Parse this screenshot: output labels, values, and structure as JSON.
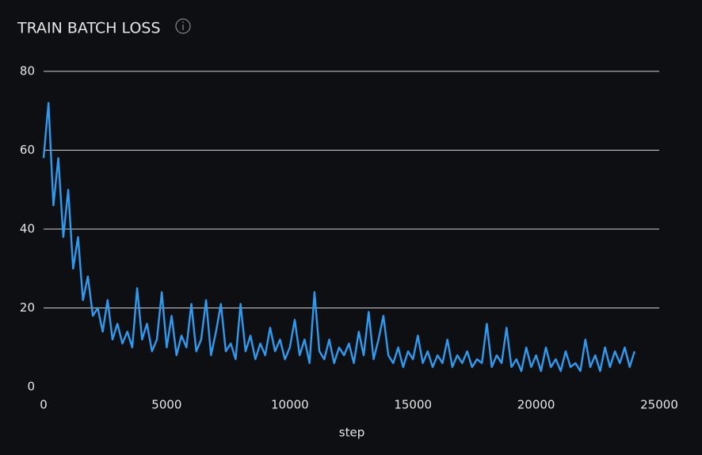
{
  "chart_data": {
    "type": "line",
    "title": "TRAIN BATCH LOSS",
    "xlabel": "step",
    "x": [
      0,
      200,
      400,
      600,
      800,
      1000,
      1200,
      1400,
      1600,
      1800,
      2000,
      2200,
      2400,
      2600,
      2800,
      3000,
      3200,
      3400,
      3600,
      3800,
      4000,
      4200,
      4400,
      4600,
      4800,
      5000,
      5200,
      5400,
      5600,
      5800,
      6000,
      6200,
      6400,
      6600,
      6800,
      7000,
      7200,
      7400,
      7600,
      7800,
      8000,
      8200,
      8400,
      8600,
      8800,
      9000,
      9200,
      9400,
      9600,
      9800,
      10000,
      10200,
      10400,
      10600,
      10800,
      11000,
      11200,
      11400,
      11600,
      11800,
      12000,
      12200,
      12400,
      12600,
      12800,
      13000,
      13200,
      13400,
      13600,
      13800,
      14000,
      14200,
      14400,
      14600,
      14800,
      15000,
      15200,
      15400,
      15600,
      15800,
      16000,
      16200,
      16400,
      16600,
      16800,
      17000,
      17200,
      17400,
      17600,
      17800,
      18000,
      18200,
      18400,
      18600,
      18800,
      19000,
      19200,
      19400,
      19600,
      19800,
      20000,
      20200,
      20400,
      20600,
      20800,
      21000,
      21200,
      21400,
      21600,
      21800,
      22000,
      22200,
      22400,
      22600,
      22800,
      23000,
      23200,
      23400,
      23600,
      23800,
      24000
    ],
    "series": [
      {
        "name": "loss",
        "color": "#2e9bf0",
        "values": [
          58,
          72,
          46,
          58,
          38,
          50,
          30,
          38,
          22,
          28,
          18,
          20,
          14,
          22,
          12,
          16,
          11,
          14,
          10,
          25,
          12,
          16,
          9,
          12,
          24,
          10,
          18,
          8,
          13,
          10,
          21,
          9,
          12,
          22,
          8,
          14,
          21,
          9,
          11,
          7,
          21,
          9,
          13,
          7,
          11,
          8,
          15,
          9,
          12,
          7,
          10,
          17,
          8,
          12,
          6,
          24,
          9,
          7,
          12,
          6,
          10,
          8,
          11,
          6,
          14,
          8,
          19,
          7,
          12,
          18,
          8,
          6,
          10,
          5,
          9,
          7,
          13,
          6,
          9,
          5,
          8,
          6,
          12,
          5,
          8,
          6,
          9,
          5,
          7,
          6,
          16,
          5,
          8,
          6,
          15,
          5,
          7,
          4,
          10,
          5,
          8,
          4,
          10,
          5,
          7,
          4,
          9,
          5,
          6,
          4,
          12,
          5,
          8,
          4,
          10,
          5,
          9,
          6,
          10,
          5,
          9
        ]
      }
    ],
    "xlim": [
      0,
      25000
    ],
    "xticks": [
      0,
      5000,
      10000,
      15000,
      20000,
      25000
    ],
    "ylim": [
      0,
      80
    ],
    "yticks": [
      0,
      20,
      40,
      60,
      80
    ],
    "grid": true
  }
}
